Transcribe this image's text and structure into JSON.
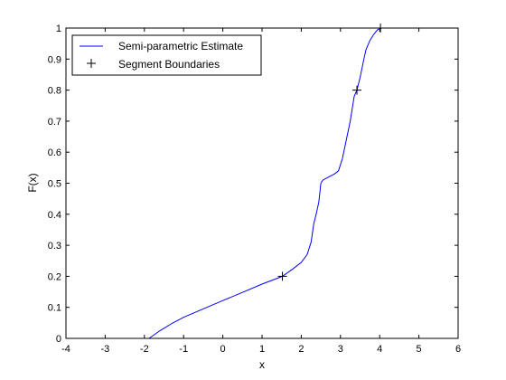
{
  "chart_data": {
    "type": "line",
    "xlabel": "x",
    "ylabel": "F(x)",
    "xlim": [
      -4,
      6
    ],
    "ylim": [
      0,
      1
    ],
    "x_ticks": [
      "-4",
      "-3",
      "-2",
      "-1",
      "0",
      "1",
      "2",
      "3",
      "4",
      "5",
      "6"
    ],
    "y_ticks": [
      "0",
      "0.1",
      "0.2",
      "0.3",
      "0.4",
      "0.5",
      "0.6",
      "0.7",
      "0.8",
      "0.9",
      "1"
    ],
    "grid": false,
    "legend_position": "top-left",
    "series": [
      {
        "name": "Semi-parametric Estimate",
        "style": "line",
        "color": "#0000ff",
        "x": [
          -1.88,
          -1.6,
          -1.3,
          -1.0,
          -0.5,
          0.0,
          0.5,
          1.0,
          1.52,
          1.8,
          2.0,
          2.15,
          2.25,
          2.32,
          2.38,
          2.45,
          2.5,
          2.55,
          2.7,
          2.85,
          2.95,
          3.05,
          3.15,
          3.25,
          3.35,
          3.42,
          3.5,
          3.58,
          3.65,
          3.75,
          3.85,
          3.95,
          4.05
        ],
        "y": [
          0.0,
          0.025,
          0.048,
          0.068,
          0.095,
          0.122,
          0.148,
          0.175,
          0.2,
          0.225,
          0.245,
          0.27,
          0.31,
          0.37,
          0.4,
          0.44,
          0.5,
          0.51,
          0.52,
          0.53,
          0.54,
          0.58,
          0.64,
          0.7,
          0.78,
          0.8,
          0.84,
          0.89,
          0.93,
          0.96,
          0.98,
          0.995,
          1.0
        ]
      },
      {
        "name": "Segment Boundaries",
        "style": "marker",
        "marker": "+",
        "color": "#000000",
        "x": [
          1.52,
          3.42,
          4.02
        ],
        "y": [
          0.2,
          0.8,
          1.0
        ]
      }
    ]
  }
}
